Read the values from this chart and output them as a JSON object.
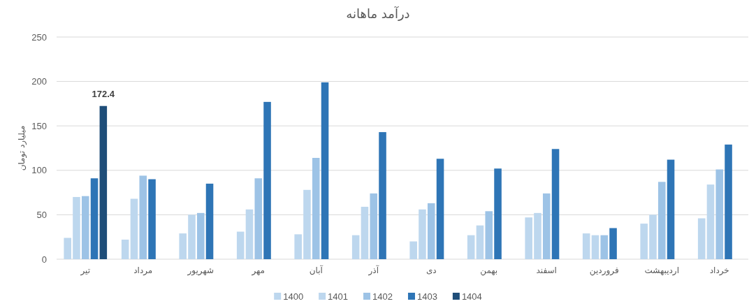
{
  "chart_data": {
    "type": "bar",
    "title": "درآمد ماهانه",
    "ylabel": "میلیارد تومان",
    "categories": [
      "تیر",
      "مرداد",
      "شهریور",
      "مهر",
      "آبان",
      "آذر",
      "دی",
      "بهمن",
      "اسفند",
      "فروردین",
      "اردیبهشت",
      "خرداد"
    ],
    "series": [
      {
        "name": "1400",
        "color": "#bdd7ee",
        "values": [
          24,
          22,
          29,
          31,
          28,
          27,
          20,
          27,
          47,
          29,
          40,
          46
        ]
      },
      {
        "name": "1401",
        "color": "#bdd7ee",
        "values": [
          70,
          68,
          50,
          56,
          78,
          59,
          56,
          38,
          52,
          27,
          50,
          84
        ]
      },
      {
        "name": "1402",
        "color": "#9dc3e6",
        "values": [
          71,
          94,
          52,
          91,
          114,
          74,
          63,
          54,
          74,
          27,
          87,
          101
        ]
      },
      {
        "name": "1403",
        "color": "#2e75b6",
        "values": [
          91,
          90,
          85,
          177,
          199,
          143,
          113,
          102,
          124,
          35,
          112,
          129
        ]
      },
      {
        "name": "1404",
        "color": "#1f4e79",
        "values": [
          172.4,
          null,
          null,
          null,
          null,
          null,
          null,
          null,
          null,
          null,
          null,
          null
        ],
        "value_labels": [
          "172.4",
          null,
          null,
          null,
          null,
          null,
          null,
          null,
          null,
          null,
          null,
          null
        ]
      }
    ],
    "ylim": [
      0,
      250
    ],
    "yticks": [
      0,
      50,
      100,
      150,
      200,
      250
    ],
    "grid": "y",
    "legend": "bottom"
  }
}
